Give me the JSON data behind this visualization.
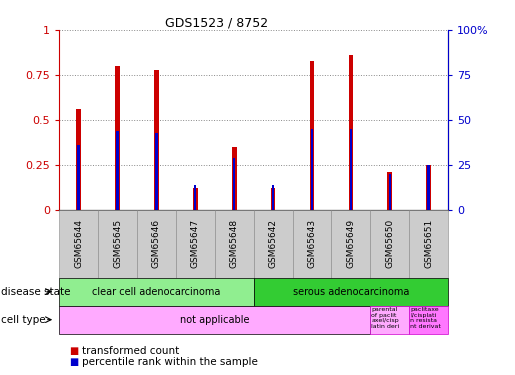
{
  "title": "GDS1523 / 8752",
  "samples": [
    "GSM65644",
    "GSM65645",
    "GSM65646",
    "GSM65647",
    "GSM65648",
    "GSM65642",
    "GSM65643",
    "GSM65649",
    "GSM65650",
    "GSM65651"
  ],
  "transformed_count": [
    0.56,
    0.8,
    0.78,
    0.12,
    0.35,
    0.12,
    0.83,
    0.86,
    0.21,
    0.25
  ],
  "percentile_rank": [
    0.36,
    0.44,
    0.43,
    0.14,
    0.29,
    0.14,
    0.45,
    0.45,
    0.2,
    0.25
  ],
  "bar_color": "#cc0000",
  "percentile_color": "#0000cc",
  "ylim": [
    0,
    1.0
  ],
  "y2lim": [
    0,
    100
  ],
  "yticks": [
    0,
    0.25,
    0.5,
    0.75,
    1.0
  ],
  "y2ticks": [
    0,
    25,
    50,
    75,
    100
  ],
  "ytick_labels": [
    "0",
    "0.25",
    "0.5",
    "0.75",
    "1"
  ],
  "y2tick_labels": [
    "0",
    "25",
    "50",
    "75",
    "100%"
  ],
  "disease_state_groups": [
    {
      "label": "clear cell adenocarcinoma",
      "start": 0,
      "end": 5,
      "color": "#90ee90"
    },
    {
      "label": "serous adenocarcinoma",
      "start": 5,
      "end": 10,
      "color": "#33cc33"
    }
  ],
  "cell_type_groups": [
    {
      "label": "not applicable",
      "start": 0,
      "end": 8,
      "color": "#ffaaff"
    },
    {
      "label": "parental\nof paclit\naxel/cisp\nlatin deri",
      "start": 8,
      "end": 9,
      "color": "#ffaaff"
    },
    {
      "label": "paclitaxe\nl/cisplati\nn resista\nnt derivat",
      "start": 9,
      "end": 10,
      "color": "#ff77ff"
    }
  ],
  "legend_items": [
    {
      "label": "transformed count",
      "color": "#cc0000"
    },
    {
      "label": "percentile rank within the sample",
      "color": "#0000cc"
    }
  ],
  "red_bar_width": 0.12,
  "blue_bar_width": 0.06,
  "sample_col_color": "#cccccc",
  "sample_col_edge": "#888888"
}
